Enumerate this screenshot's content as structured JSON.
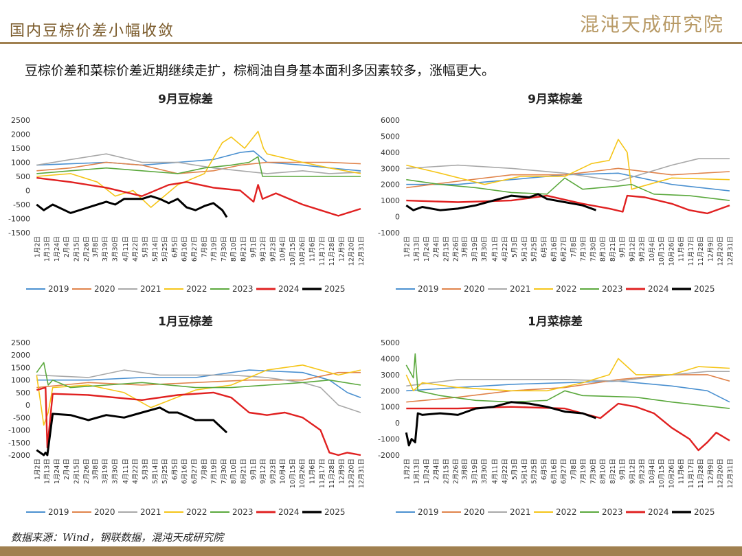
{
  "header": {
    "title": "国内豆棕价差小幅收敛",
    "logo_text": "混沌天成研究院"
  },
  "summary": "豆棕价差和菜棕价差近期继续走扩，棕榈油自身基本面利多因素较多，涨幅更大。",
  "source": "数据来源：Wind，钢联数据，混沌天成研究院",
  "colors": {
    "2019": "#4a90d0",
    "2020": "#e0834a",
    "2021": "#a8a8a8",
    "2022": "#f5c518",
    "2023": "#5aa83c",
    "2024": "#e02020",
    "2025": "#000000",
    "brand": "#a08050",
    "header_text": "#7a5a2a"
  },
  "x_tick_labels": [
    "1月2日",
    "1月13日",
    "1月24日",
    "2月4日",
    "2月15日",
    "2月26日",
    "3月8日",
    "3月19日",
    "3月30日",
    "4月11日",
    "4月22日",
    "5月3日",
    "5月14日",
    "5月25日",
    "6月5日",
    "6月16日",
    "6月27日",
    "7月8日",
    "7月19日",
    "7月30日",
    "8月10日",
    "8月21日",
    "9月1日",
    "9月12日",
    "9月23日",
    "10月4日",
    "10月15日",
    "10月26日",
    "11月6日",
    "11月17日",
    "11月28日",
    "12月9日",
    "12月20日",
    "12月31日"
  ],
  "chart_data": [
    {
      "type": "line",
      "title": "9月豆棕差",
      "yticks": [
        2500,
        2000,
        1500,
        1000,
        500,
        0,
        -500,
        -1000,
        -1500
      ],
      "ylim": [
        -1500,
        2500
      ],
      "tick_labels": [
        "1月2日",
        "1月13日",
        "1月24日",
        "2月4日",
        "2月15日",
        "2月26日",
        "3月8日",
        "3月19日",
        "3月30日",
        "4月11日",
        "4月22日",
        "5月3日",
        "5月14日",
        "5月25日",
        "6月5日",
        "6月16日",
        "6月27日",
        "7月8日",
        "7月19日",
        "7月30日",
        "8月10日",
        "8月21日",
        "9月1日",
        "9月12日",
        "9月23日",
        "10月4日",
        "10月15日",
        "10月26日",
        "11月6日",
        "11月17日",
        "11月28日",
        "12月9日",
        "12月20日",
        "12月31日"
      ],
      "series": [
        {
          "name": "2019",
          "x": [
            2,
            40,
            80,
            120,
            160,
            200,
            230,
            245,
            260,
            300,
            330,
            365
          ],
          "y": [
            900,
            950,
            1000,
            900,
            1000,
            1100,
            1350,
            1400,
            1000,
            900,
            800,
            700
          ]
        },
        {
          "name": "2020",
          "x": [
            2,
            40,
            80,
            120,
            160,
            200,
            230,
            260,
            300,
            330,
            365
          ],
          "y": [
            700,
            800,
            1000,
            900,
            600,
            700,
            900,
            1000,
            1000,
            1000,
            950
          ]
        },
        {
          "name": "2021",
          "x": [
            2,
            40,
            80,
            120,
            160,
            200,
            230,
            260,
            300,
            330,
            365
          ],
          "y": [
            900,
            1100,
            1300,
            1000,
            1000,
            800,
            700,
            600,
            700,
            600,
            650
          ]
        },
        {
          "name": "2022",
          "x": [
            2,
            40,
            70,
            90,
            110,
            130,
            160,
            190,
            210,
            220,
            235,
            250,
            256,
            260,
            300,
            330,
            365
          ],
          "y": [
            500,
            600,
            300,
            -200,
            0,
            -600,
            200,
            600,
            1700,
            1900,
            1500,
            2100,
            1500,
            1300,
            1000,
            800,
            600
          ]
        },
        {
          "name": "2023",
          "x": [
            2,
            40,
            80,
            120,
            160,
            190,
            220,
            240,
            250,
            255,
            260,
            300,
            330,
            365
          ],
          "y": [
            600,
            700,
            800,
            700,
            600,
            800,
            900,
            1000,
            1200,
            500,
            500,
            500,
            500,
            500
          ]
        },
        {
          "name": "2024",
          "x": [
            2,
            40,
            80,
            120,
            150,
            170,
            200,
            230,
            245,
            250,
            255,
            270,
            300,
            320,
            340,
            365
          ],
          "y": [
            450,
            300,
            100,
            -200,
            200,
            300,
            100,
            0,
            -400,
            200,
            -300,
            -100,
            -500,
            -700,
            -900,
            -650
          ]
        },
        {
          "name": "2025",
          "x": [
            2,
            10,
            20,
            40,
            60,
            80,
            90,
            100,
            110,
            120,
            130,
            140,
            150,
            160,
            170,
            180,
            190,
            200,
            210,
            215
          ],
          "y": [
            -500,
            -700,
            -500,
            -800,
            -600,
            -400,
            -500,
            -300,
            -300,
            -300,
            -200,
            -300,
            -450,
            -300,
            -600,
            -700,
            -550,
            -450,
            -700,
            -950
          ]
        }
      ]
    },
    {
      "type": "line",
      "title": "9月菜棕差",
      "yticks": [
        6000,
        5000,
        4000,
        3000,
        2000,
        1000,
        0,
        -1000
      ],
      "ylim": [
        -1000,
        6000
      ],
      "tick_labels": [
        "1月2日",
        "1月13日",
        "1月24日",
        "2月4日",
        "2月15日",
        "2月26日",
        "3月8日",
        "3月19日",
        "3月30日",
        "4月11日",
        "4月22日",
        "5月3日",
        "5月14日",
        "5月25日",
        "6月5日",
        "6月16日",
        "6月27日",
        "7月8日",
        "7月19日",
        "7月30日",
        "8月10日",
        "8月21日",
        "9月1日",
        "9月12日",
        "9月23日",
        "10月4日",
        "10月15日",
        "10月26日",
        "11月6日",
        "11月17日",
        "11月28日",
        "12月9日",
        "12月20日",
        "12月31日"
      ],
      "series": [
        {
          "name": "2019",
          "x": [
            2,
            60,
            120,
            180,
            240,
            300,
            365
          ],
          "y": [
            2000,
            2000,
            2300,
            2600,
            2700,
            2000,
            1600
          ]
        },
        {
          "name": "2020",
          "x": [
            2,
            60,
            120,
            180,
            240,
            300,
            365
          ],
          "y": [
            1800,
            2200,
            2600,
            2600,
            3000,
            2600,
            2800
          ]
        },
        {
          "name": "2021",
          "x": [
            2,
            60,
            120,
            180,
            240,
            300,
            330,
            365
          ],
          "y": [
            3000,
            3200,
            3000,
            2700,
            2200,
            3200,
            3600,
            3600
          ]
        },
        {
          "name": "2022",
          "x": [
            2,
            40,
            90,
            130,
            180,
            210,
            230,
            240,
            250,
            255,
            300,
            365
          ],
          "y": [
            3200,
            2700,
            2000,
            2500,
            2500,
            3300,
            3500,
            4800,
            4000,
            1700,
            2400,
            2300
          ]
        },
        {
          "name": "2023",
          "x": [
            2,
            40,
            80,
            120,
            160,
            180,
            200,
            240,
            255,
            280,
            320,
            365
          ],
          "y": [
            2300,
            2000,
            1800,
            1500,
            1400,
            2400,
            1700,
            1900,
            2000,
            1400,
            1300,
            1000
          ]
        },
        {
          "name": "2024",
          "x": [
            2,
            60,
            120,
            160,
            200,
            230,
            245,
            250,
            270,
            300,
            320,
            340,
            365
          ],
          "y": [
            1000,
            900,
            1000,
            1300,
            800,
            500,
            300,
            1300,
            1200,
            800,
            400,
            200,
            700
          ]
        },
        {
          "name": "2025",
          "x": [
            2,
            10,
            20,
            40,
            60,
            80,
            100,
            120,
            140,
            150,
            160,
            180,
            190,
            200,
            215
          ],
          "y": [
            700,
            400,
            600,
            400,
            500,
            700,
            1000,
            1300,
            1200,
            1400,
            1100,
            900,
            800,
            700,
            400
          ]
        }
      ]
    },
    {
      "type": "line",
      "title": "1月豆棕差",
      "yticks": [
        2500,
        2000,
        1500,
        1000,
        500,
        0,
        -500,
        -1000,
        -1500,
        -2000
      ],
      "ylim": [
        -2000,
        2500
      ],
      "tick_labels": [
        "1月2日",
        "1月13日",
        "1月24日",
        "2月4日",
        "2月15日",
        "2月26日",
        "3月8日",
        "3月19日",
        "3月30日",
        "4月11日",
        "4月22日",
        "5月3日",
        "5月14日",
        "5月25日",
        "6月5日",
        "6月16日",
        "6月27日",
        "7月8日",
        "7月19日",
        "7月30日",
        "8月10日",
        "8月21日",
        "9月1日",
        "9月12日",
        "9月23日",
        "10月4日",
        "10月15日",
        "10月26日",
        "11月6日",
        "11月17日",
        "11月28日",
        "12月9日",
        "12月20日",
        "12月31日"
      ],
      "series": [
        {
          "name": "2019",
          "x": [
            2,
            60,
            120,
            180,
            240,
            300,
            330,
            350,
            365
          ],
          "y": [
            1000,
            1000,
            1100,
            1100,
            1400,
            1300,
            1000,
            500,
            300
          ]
        },
        {
          "name": "2020",
          "x": [
            2,
            60,
            120,
            180,
            240,
            300,
            340,
            365
          ],
          "y": [
            700,
            900,
            800,
            900,
            1000,
            1000,
            1300,
            1300
          ]
        },
        {
          "name": "2021",
          "x": [
            2,
            60,
            100,
            140,
            180,
            220,
            260,
            300,
            320,
            340,
            365
          ],
          "y": [
            1200,
            1100,
            1400,
            1200,
            1200,
            1200,
            1100,
            900,
            700,
            0,
            -300
          ]
        },
        {
          "name": "2022",
          "x": [
            2,
            10,
            15,
            20,
            60,
            100,
            130,
            180,
            220,
            260,
            300,
            340,
            365
          ],
          "y": [
            1200,
            -800,
            -300,
            700,
            800,
            500,
            -100,
            600,
            800,
            1400,
            1600,
            1200,
            1400
          ]
        },
        {
          "name": "2023",
          "x": [
            2,
            10,
            15,
            20,
            40,
            80,
            120,
            180,
            220,
            260,
            300,
            330,
            365
          ],
          "y": [
            1300,
            1700,
            800,
            1000,
            700,
            800,
            900,
            700,
            700,
            800,
            900,
            1000,
            800
          ]
        },
        {
          "name": "2024",
          "x": [
            2,
            12,
            14,
            20,
            60,
            120,
            160,
            200,
            220,
            240,
            260,
            280,
            300,
            320,
            330,
            340,
            350,
            365
          ],
          "y": [
            600,
            700,
            -1700,
            450,
            400,
            200,
            400,
            500,
            300,
            -300,
            -400,
            -300,
            -500,
            -1000,
            -1900,
            -2000,
            -1900,
            -2000
          ]
        },
        {
          "name": "2025",
          "x": [
            2,
            10,
            12,
            14,
            20,
            40,
            60,
            80,
            100,
            120,
            140,
            150,
            160,
            180,
            200,
            215
          ],
          "y": [
            -1800,
            -2000,
            -1900,
            -2000,
            -350,
            -400,
            -600,
            -400,
            -500,
            -300,
            -100,
            -300,
            -300,
            -600,
            -600,
            -1100
          ]
        }
      ]
    },
    {
      "type": "line",
      "title": "1月菜棕差",
      "yticks": [
        5000,
        4000,
        3000,
        2000,
        1000,
        0,
        -1000,
        -2000
      ],
      "ylim": [
        -2000,
        5000
      ],
      "tick_labels": [
        "1月2日",
        "1月13日",
        "1月24日",
        "2月4日",
        "2月15日",
        "2月26日",
        "3月8日",
        "3月19日",
        "3月30日",
        "4月11日",
        "4月22日",
        "5月3日",
        "5月14日",
        "5月25日",
        "6月5日",
        "6月16日",
        "6月27日",
        "7月8日",
        "7月19日",
        "7月30日",
        "8月10日",
        "8月21日",
        "9月1日",
        "9月12日",
        "9月23日",
        "10月4日",
        "10月15日",
        "10月26日",
        "11月6日",
        "11月17日",
        "11月28日",
        "12月9日",
        "12月20日",
        "12月31日"
      ],
      "series": [
        {
          "name": "2019",
          "x": [
            2,
            60,
            120,
            180,
            240,
            300,
            340,
            365
          ],
          "y": [
            2000,
            2200,
            2400,
            2500,
            2600,
            2300,
            2000,
            1300
          ]
        },
        {
          "name": "2020",
          "x": [
            2,
            60,
            120,
            180,
            240,
            300,
            340,
            365
          ],
          "y": [
            1300,
            1600,
            2000,
            2200,
            2700,
            3000,
            3000,
            2600
          ]
        },
        {
          "name": "2021",
          "x": [
            2,
            60,
            120,
            180,
            240,
            300,
            340,
            365
          ],
          "y": [
            2300,
            2700,
            2700,
            2700,
            2600,
            3000,
            3200,
            3200
          ]
        },
        {
          "name": "2022",
          "x": [
            2,
            10,
            20,
            60,
            120,
            160,
            200,
            230,
            240,
            260,
            300,
            330,
            365
          ],
          "y": [
            3000,
            2000,
            2500,
            2200,
            2000,
            2000,
            2500,
            3000,
            4000,
            3000,
            3000,
            3500,
            3400
          ]
        },
        {
          "name": "2023",
          "x": [
            2,
            10,
            12,
            15,
            40,
            80,
            120,
            160,
            180,
            200,
            260,
            300,
            365
          ],
          "y": [
            3600,
            2800,
            4300,
            2000,
            1700,
            1400,
            1300,
            1400,
            2000,
            1700,
            1600,
            1300,
            900
          ]
        },
        {
          "name": "2024",
          "x": [
            2,
            60,
            120,
            180,
            200,
            220,
            240,
            260,
            280,
            300,
            320,
            330,
            340,
            350,
            365
          ],
          "y": [
            900,
            900,
            1000,
            900,
            600,
            300,
            1200,
            1000,
            600,
            -300,
            -1000,
            -1700,
            -1200,
            -600,
            -1100
          ]
        },
        {
          "name": "2025",
          "x": [
            2,
            5,
            8,
            12,
            15,
            20,
            40,
            60,
            80,
            100,
            120,
            140,
            160,
            180,
            200,
            215
          ],
          "y": [
            -600,
            -1400,
            -1000,
            -1200,
            600,
            500,
            600,
            500,
            900,
            1000,
            1300,
            1200,
            1000,
            700,
            600,
            300
          ]
        }
      ]
    }
  ]
}
